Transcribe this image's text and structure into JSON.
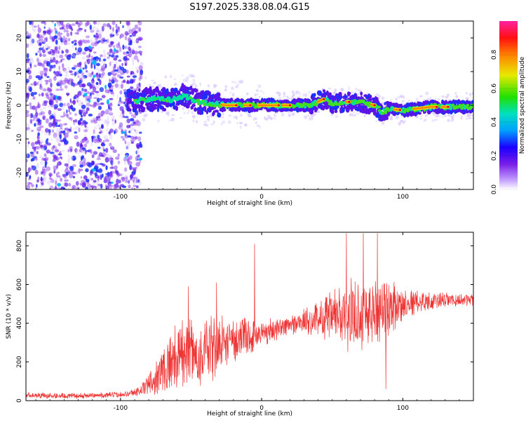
{
  "figure": {
    "title": "S197.2025.338.08.04.G15"
  },
  "colors": {
    "snr_line": "#ee3333",
    "axes": "#000000",
    "colormap": [
      "#d8c8ff",
      "#6a1ee0",
      "#0000ff",
      "#00b8ff",
      "#00e0a0",
      "#22e000",
      "#ffd000",
      "#ff7000",
      "#e00000",
      "#ff2090"
    ]
  },
  "chart_data": [
    {
      "type": "heatmap",
      "xlabel": "Height of straight line (km)",
      "ylabel": "Frequency (Hz)",
      "xlim": [
        -167,
        150
      ],
      "ylim": [
        -25,
        25
      ],
      "x_ticks": [
        -100,
        0,
        100
      ],
      "y_ticks": [
        20,
        10,
        0,
        -10,
        -20
      ],
      "noise_region_x": [
        -167,
        -85
      ],
      "ridge": {
        "x": [
          -95,
          -85,
          -75,
          -65,
          -55,
          -45,
          -35,
          -25,
          -15,
          -5,
          5,
          15,
          25,
          35,
          40,
          45,
          50,
          60,
          70,
          80,
          85,
          90,
          100,
          110,
          120,
          130,
          140,
          150
        ],
        "y": [
          1.0,
          1.5,
          2.0,
          1.5,
          3.0,
          1.0,
          0.5,
          0.0,
          0.0,
          0.0,
          0.0,
          0.0,
          0.0,
          0.0,
          1.0,
          2.0,
          0.5,
          1.0,
          1.0,
          0.0,
          -2.0,
          -1.0,
          -1.5,
          -1.0,
          -0.5,
          -0.5,
          -0.5,
          -0.5
        ]
      },
      "colorbar": {
        "label": "Normalized spectral amplitude",
        "ticks": [
          "0.0",
          "0.2",
          "0.4",
          "0.6",
          "0.8"
        ],
        "tick_values": [
          0.0,
          0.2,
          0.4,
          0.6,
          0.8
        ],
        "range": [
          0,
          1
        ]
      }
    },
    {
      "type": "line",
      "xlabel": "Height of straight line (km)",
      "ylabel": "SNR (10 * v/v)",
      "xlim": [
        -167,
        150
      ],
      "ylim": [
        0,
        870
      ],
      "x_ticks": [
        -100,
        0,
        100
      ],
      "y_ticks": [
        0,
        200,
        400,
        600,
        800
      ],
      "envelope": {
        "x": [
          -167,
          -150,
          -130,
          -110,
          -95,
          -85,
          -80,
          -75,
          -70,
          -65,
          -60,
          -55,
          -50,
          -45,
          -40,
          -35,
          -30,
          -25,
          -20,
          -15,
          -10,
          -5,
          0,
          5,
          10,
          20,
          30,
          40,
          50,
          60,
          70,
          80,
          90,
          100,
          110,
          120,
          130,
          140,
          150
        ],
        "mean": [
          30,
          25,
          25,
          28,
          35,
          55,
          90,
          120,
          160,
          200,
          230,
          260,
          240,
          220,
          250,
          270,
          280,
          300,
          310,
          320,
          330,
          340,
          350,
          360,
          370,
          390,
          410,
          420,
          430,
          440,
          450,
          460,
          480,
          500,
          510,
          515,
          520,
          520,
          525
        ],
        "amplitude": [
          15,
          15,
          15,
          15,
          15,
          30,
          60,
          90,
          120,
          160,
          170,
          200,
          180,
          160,
          170,
          190,
          150,
          130,
          120,
          110,
          100,
          90,
          80,
          70,
          60,
          60,
          70,
          90,
          150,
          190,
          200,
          180,
          150,
          90,
          60,
          45,
          40,
          35,
          35
        ]
      },
      "spikes": [
        {
          "x": -52,
          "y": 590
        },
        {
          "x": -32,
          "y": 610
        },
        {
          "x": -28,
          "y": 440
        },
        {
          "x": -5,
          "y": 810
        },
        {
          "x": 60,
          "y": 865
        },
        {
          "x": 72,
          "y": 865
        },
        {
          "x": 82,
          "y": 865
        },
        {
          "x": 88,
          "y": 60
        }
      ]
    }
  ]
}
